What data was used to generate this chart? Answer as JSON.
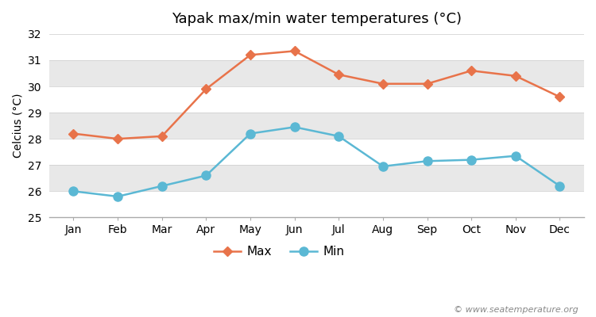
{
  "title": "Yapak max/min water temperatures (°C)",
  "ylabel": "Celcius (°C)",
  "watermark": "© www.seatemperature.org",
  "months": [
    "Jan",
    "Feb",
    "Mar",
    "Apr",
    "May",
    "Jun",
    "Jul",
    "Aug",
    "Sep",
    "Oct",
    "Nov",
    "Dec"
  ],
  "max_values": [
    28.2,
    28.0,
    28.1,
    29.9,
    31.2,
    31.35,
    30.45,
    30.1,
    30.1,
    30.6,
    30.4,
    29.6
  ],
  "min_values": [
    26.0,
    25.8,
    26.2,
    26.6,
    28.2,
    28.45,
    28.1,
    26.95,
    27.15,
    27.2,
    27.35,
    26.2
  ],
  "max_color": "#e8734a",
  "min_color": "#5bb8d4",
  "max_marker": "D",
  "min_marker": "o",
  "ylim": [
    25,
    32
  ],
  "yticks": [
    25,
    26,
    27,
    28,
    29,
    30,
    31,
    32
  ],
  "band_colors": [
    "#ffffff",
    "#e8e8e8"
  ],
  "fig_bg_color": "#ffffff",
  "plot_bg_color": "#ffffff",
  "legend_labels": [
    "Max",
    "Min"
  ],
  "marker_size": 6,
  "min_marker_size": 8,
  "linewidth": 1.8,
  "title_fontsize": 13,
  "label_fontsize": 10,
  "tick_fontsize": 10
}
